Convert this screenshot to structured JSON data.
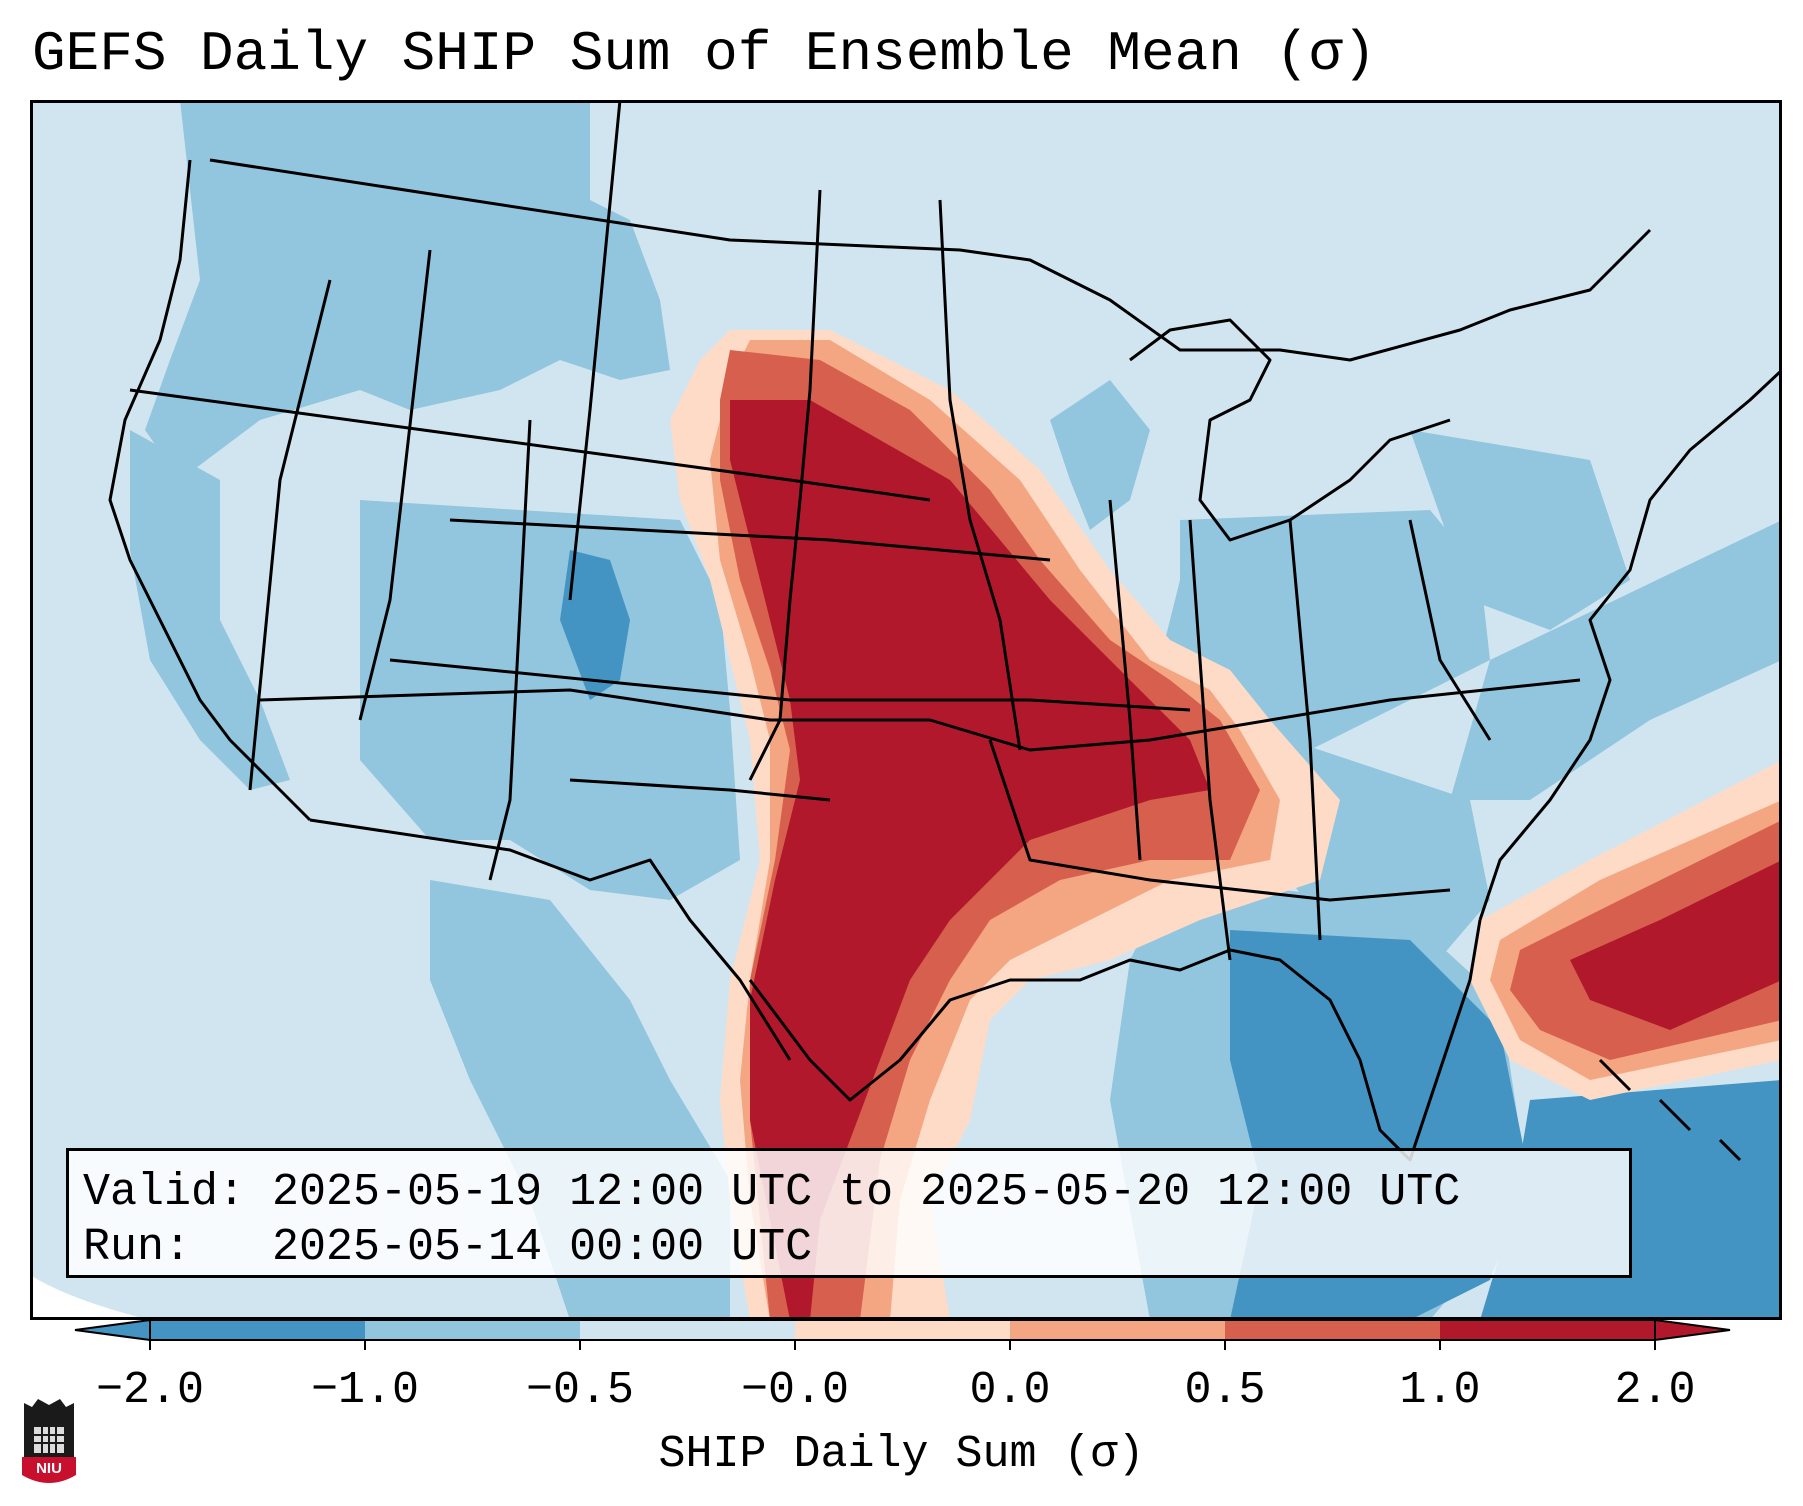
{
  "title": "GEFS Daily SHIP Sum of Ensemble Mean (σ)",
  "info": {
    "valid_label": "Valid: ",
    "valid_value": "2025-05-19 12:00 UTC to 2025-05-20 12:00 UTC",
    "run_label": "Run:   ",
    "run_value": "2025-05-14 00:00 UTC"
  },
  "colorbar": {
    "label": "SHIP Daily Sum (σ)",
    "ticks": [
      "−2.0",
      "−1.0",
      "−0.5",
      "−0.0",
      "0.0",
      "0.5",
      "1.0",
      "2.0"
    ],
    "colors": [
      "#4393c3",
      "#92c5de",
      "#d1e5f0",
      "#fddbc7",
      "#f4a582",
      "#d6604d",
      "#b2182b"
    ]
  },
  "logo_text": "NIU",
  "colors": {
    "ocean": "#d1e5f0",
    "strong_positive": "#b2182b",
    "positive": "#d6604d",
    "weak_positive": "#f4a582",
    "slight_positive": "#fddbc7",
    "slight_negative": "#92c5de",
    "negative": "#4393c3",
    "outline": "#000000"
  }
}
